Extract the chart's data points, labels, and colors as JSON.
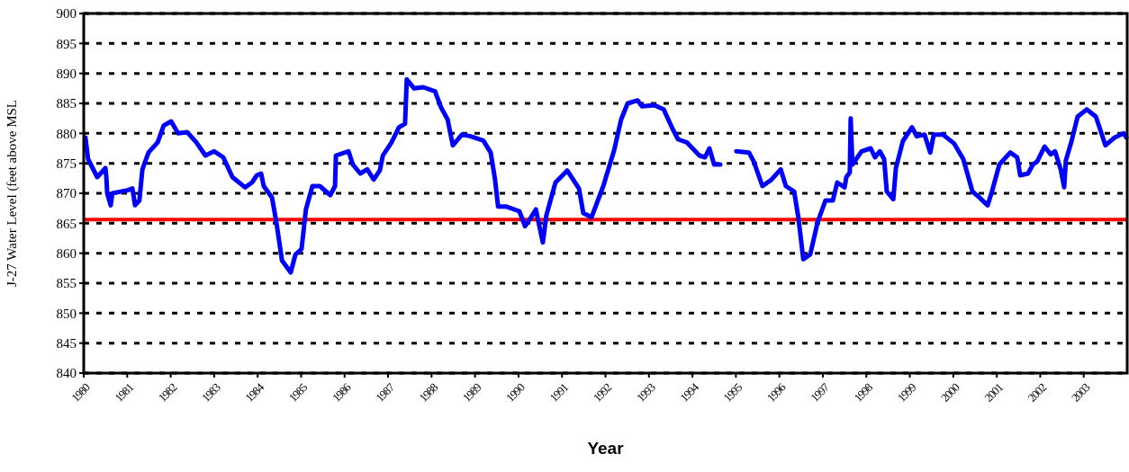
{
  "chart_data": {
    "type": "line",
    "xlabel": "Year",
    "ylabel": "J-27 Water Level (feet above MSL",
    "xlim": [
      1980,
      2004
    ],
    "xticks": [
      1980,
      1981,
      1982,
      1983,
      1984,
      1985,
      1986,
      1987,
      1988,
      1989,
      1990,
      1991,
      1992,
      1993,
      1994,
      1995,
      1996,
      1997,
      1998,
      1999,
      2000,
      2001,
      2002,
      2003
    ],
    "ylim": [
      840,
      900
    ],
    "yticks": [
      840,
      845,
      850,
      855,
      860,
      865,
      870,
      875,
      880,
      885,
      890,
      895,
      900
    ],
    "grid": "y",
    "ref_lines": [
      {
        "axis": "y",
        "value": 865.6,
        "color": "#ff0000"
      }
    ],
    "series": [
      {
        "color": "#0000ff",
        "x": [
          1980.04,
          1980.1,
          1980.31,
          1980.5,
          1980.52,
          1980.54,
          1980.62,
          1980.66,
          1981.01,
          1981.12,
          1981.18,
          1981.28,
          1981.35,
          1981.49,
          1981.7,
          1981.84,
          1982.01,
          1982.17,
          1982.38,
          1982.59,
          1982.8,
          1983.0,
          1983.21,
          1983.42,
          1983.71,
          1983.87,
          1983.98,
          1984.08,
          1984.14,
          1984.33,
          1984.43,
          1984.56,
          1984.76,
          1984.87,
          1985.01,
          1985.11,
          1985.26,
          1985.43,
          1985.67,
          1985.78,
          1985.8,
          1986.09,
          1986.19,
          1986.36,
          1986.52,
          1986.67,
          1986.81,
          1986.88,
          1987.08,
          1987.25,
          1987.39,
          1987.43,
          1987.6,
          1987.81,
          1988.08,
          1988.22,
          1988.37,
          1988.49,
          1988.7,
          1988.9,
          1989.19,
          1989.36,
          1989.46,
          1989.53,
          1989.71,
          1990.02,
          1990.15,
          1990.29,
          1990.4,
          1990.46,
          1990.56,
          1990.64,
          1990.85,
          1991.12,
          1991.39,
          1991.49,
          1991.68,
          1991.95,
          1992.2,
          1992.36,
          1992.51,
          1992.74,
          1992.84,
          1993.13,
          1993.34,
          1993.54,
          1993.67,
          1993.87,
          1994.16,
          1994.29,
          1994.39,
          1994.5,
          1994.64,
          1994.83,
          1995.01,
          1995.3,
          1995.41,
          1995.61,
          1995.82,
          1996.03,
          1996.15,
          1996.34,
          1996.44,
          1996.55,
          1996.71,
          1996.88,
          1997.06,
          1997.23,
          1997.33,
          1997.5,
          1997.54,
          1997.62,
          1997.64,
          1997.68,
          1997.89,
          1998.1,
          1998.2,
          1998.31,
          1998.41,
          1998.47,
          1998.62,
          1998.68,
          1998.84,
          1999.05,
          1999.16,
          1999.34,
          1999.47,
          1999.55,
          1999.76,
          2000.02,
          2000.23,
          2000.44,
          2000.6,
          2000.79,
          2000.89,
          2001.06,
          2001.31,
          2001.47,
          2001.54,
          2001.72,
          2001.83,
          2001.93,
          2002.1,
          2002.24,
          2002.34,
          2002.47,
          2002.55,
          2002.59,
          2002.72,
          2002.86,
          2003.07,
          2003.28,
          2003.5,
          2003.71,
          2003.92,
          2003.98
        ],
        "values": [
          879.3,
          875.7,
          872.7,
          874.2,
          872.7,
          870,
          868,
          870,
          870.5,
          870.8,
          868,
          868.8,
          874,
          876.8,
          878.5,
          881.3,
          882,
          880,
          880.2,
          878.5,
          876.3,
          877,
          876,
          872.7,
          871,
          871.8,
          873,
          873.3,
          871.2,
          869.3,
          865.2,
          858.8,
          856.8,
          859.8,
          860.7,
          867.3,
          871.2,
          871.2,
          869.7,
          871.2,
          876.3,
          877,
          874.8,
          873.3,
          874,
          872.3,
          873.8,
          876.3,
          878.5,
          881,
          881.6,
          889,
          887.5,
          887.7,
          887,
          884.3,
          882.3,
          878,
          879.8,
          879.5,
          878.8,
          876.8,
          872.3,
          867.8,
          867.8,
          867,
          864.5,
          866,
          867.3,
          865.2,
          861.8,
          866.3,
          871.8,
          873.8,
          870.8,
          866.7,
          866,
          871.2,
          877.2,
          882.3,
          885,
          885.5,
          884.5,
          884.7,
          884,
          880.8,
          879,
          878.5,
          876.3,
          876,
          877.5,
          874.8,
          874.8,
          null,
          877,
          876.8,
          875.3,
          871.2,
          872.3,
          874,
          871.2,
          870.3,
          865.8,
          859,
          859.8,
          865.2,
          868.8,
          868.8,
          871.8,
          871,
          872.7,
          873.5,
          882.5,
          874.8,
          877,
          877.5,
          876,
          877,
          875.7,
          870.3,
          869,
          874.2,
          878.7,
          881,
          879.5,
          879.8,
          876.8,
          879.8,
          879.8,
          878.3,
          875.7,
          870.3,
          869.3,
          868,
          870.3,
          874.8,
          876.8,
          876,
          873,
          873.3,
          874.8,
          875.3,
          877.8,
          876.5,
          877,
          874,
          871,
          875.5,
          878.7,
          882.8,
          884,
          882.8,
          878,
          879.3,
          880,
          879.3
        ]
      }
    ]
  }
}
